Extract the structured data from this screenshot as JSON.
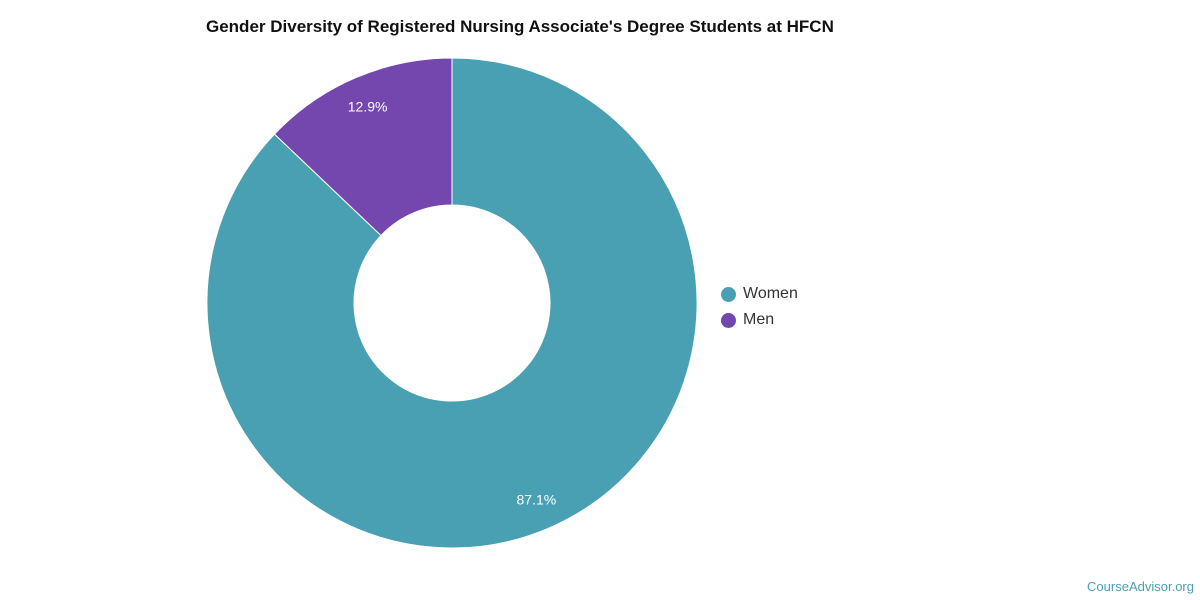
{
  "chart_data": {
    "type": "pie",
    "variant": "donut",
    "title": "Gender Diversity of Registered Nursing Associate's Degree Students at HFCN",
    "categories": [
      "Women",
      "Men"
    ],
    "values": [
      87.1,
      12.9
    ],
    "labels": [
      "87.1%",
      "12.9%"
    ],
    "colors": [
      "#4aa0b3",
      "#7447ae"
    ],
    "legend": "right"
  },
  "watermark": "CourseAdvisor.org"
}
